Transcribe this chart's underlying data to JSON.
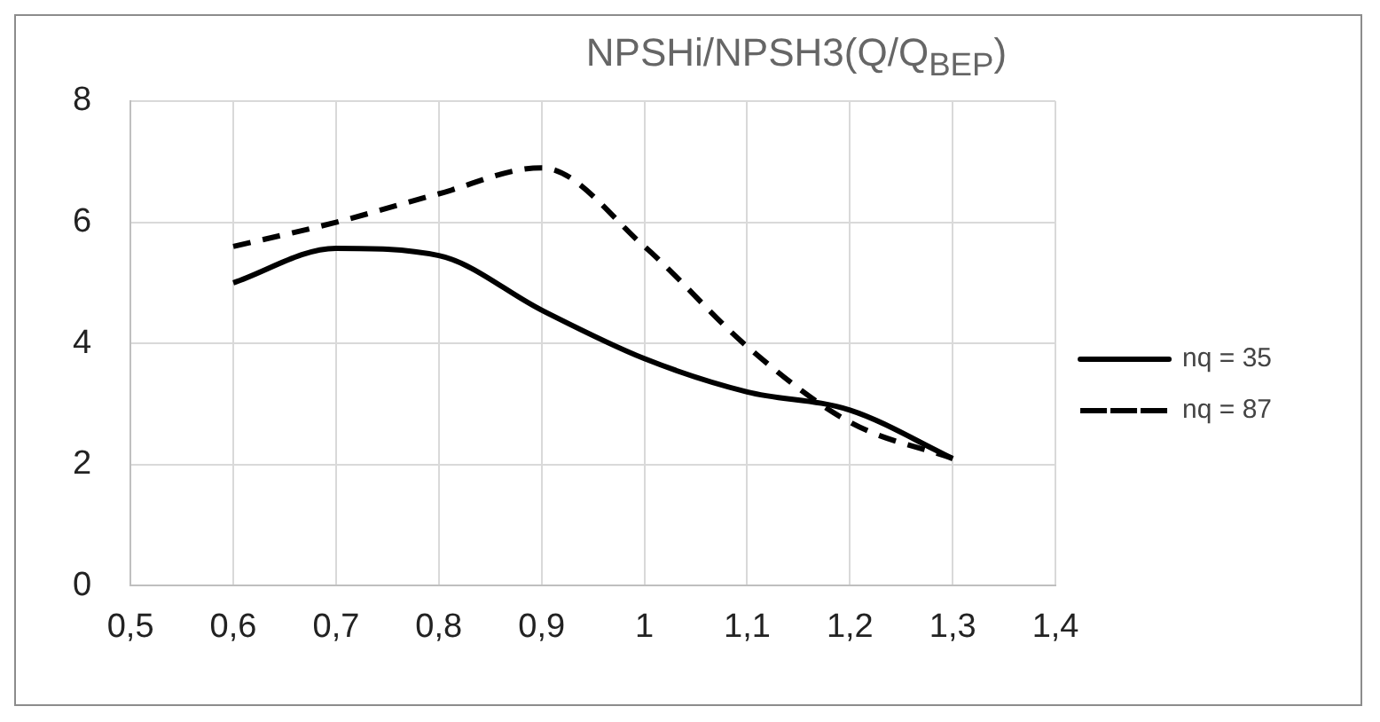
{
  "chart_data": {
    "type": "line",
    "title": "NPSHi/NPSH3(Q/Q$_{BEP}$)",
    "x": [
      0.6,
      0.7,
      0.8,
      0.9,
      1.0,
      1.1,
      1.2,
      1.3
    ],
    "series": [
      {
        "name": "nq = 35",
        "color": "#000000",
        "line_style": "solid",
        "values": [
          5.0,
          5.57,
          5.45,
          4.55,
          3.75,
          3.2,
          2.9,
          2.1
        ]
      },
      {
        "name": "nq = 87",
        "color": "#000000",
        "line_style": "dashed",
        "values": [
          5.6,
          6.0,
          6.47,
          6.9,
          5.6,
          3.95,
          2.7,
          2.1
        ]
      }
    ],
    "xlim": [
      0.5,
      1.4
    ],
    "xticks": [
      {
        "value": 0.5,
        "label": "0,5"
      },
      {
        "value": 0.6,
        "label": "0,6"
      },
      {
        "value": 0.7,
        "label": "0,7"
      },
      {
        "value": 0.8,
        "label": "0,8"
      },
      {
        "value": 0.9,
        "label": "0,9"
      },
      {
        "value": 1.0,
        "label": "1"
      },
      {
        "value": 1.1,
        "label": "1,1"
      },
      {
        "value": 1.2,
        "label": "1,2"
      },
      {
        "value": 1.3,
        "label": "1,3"
      },
      {
        "value": 1.4,
        "label": "1,4"
      }
    ],
    "ylim": [
      0,
      8
    ],
    "yticks": [
      0,
      2,
      4,
      6,
      8
    ],
    "grid": true,
    "legend": "right",
    "marker": "none"
  }
}
